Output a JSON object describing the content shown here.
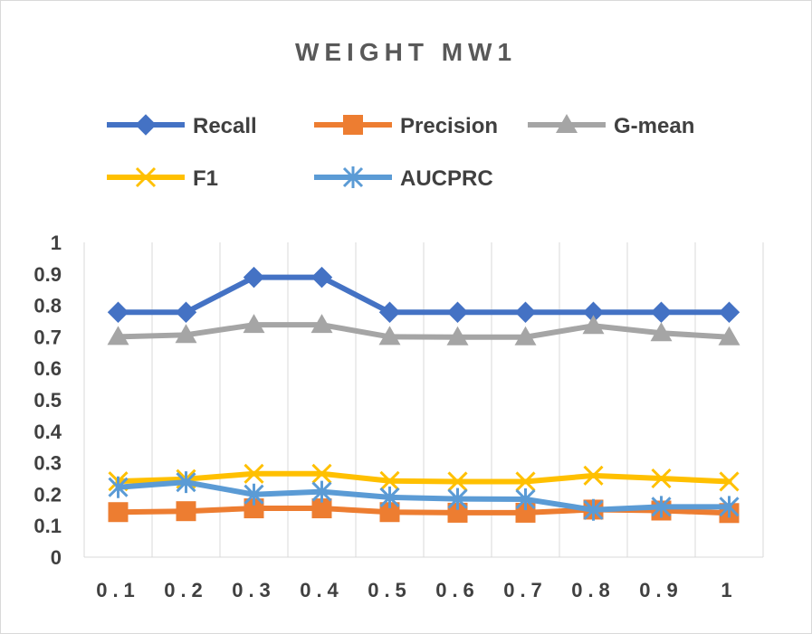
{
  "chart_data": {
    "type": "line",
    "title": "WEIGHT MW1",
    "xlabel": "",
    "ylabel": "",
    "categories": [
      "0.1",
      "0.2",
      "0.3",
      "0.4",
      "0.5",
      "0.6",
      "0.7",
      "0.8",
      "0.9",
      "1"
    ],
    "ylim": [
      0,
      1
    ],
    "yticks": [
      "0",
      "0.1",
      "0.2",
      "0.3",
      "0.4",
      "0.5",
      "0.6",
      "0.7",
      "0.8",
      "0.9",
      "1"
    ],
    "grid": "vertical",
    "legend_position": "top",
    "series": [
      {
        "name": "Recall",
        "color": "#4472C4",
        "marker": "diamond",
        "values": [
          0.778,
          0.778,
          0.889,
          0.889,
          0.778,
          0.778,
          0.778,
          0.778,
          0.778,
          0.778
        ]
      },
      {
        "name": "Precision",
        "color": "#ED7D31",
        "marker": "square",
        "values": [
          0.143,
          0.146,
          0.155,
          0.155,
          0.143,
          0.141,
          0.141,
          0.151,
          0.148,
          0.14
        ]
      },
      {
        "name": "G-mean",
        "color": "#A5A5A5",
        "marker": "triangle",
        "values": [
          0.7,
          0.706,
          0.738,
          0.738,
          0.7,
          0.699,
          0.699,
          0.735,
          0.712,
          0.699
        ]
      },
      {
        "name": "F1",
        "color": "#FFC000",
        "marker": "x",
        "values": [
          0.241,
          0.248,
          0.265,
          0.265,
          0.242,
          0.24,
          0.24,
          0.259,
          0.25,
          0.24
        ]
      },
      {
        "name": "AUCPRC",
        "color": "#5B9BD5",
        "marker": "star",
        "values": [
          0.222,
          0.238,
          0.199,
          0.208,
          0.19,
          0.185,
          0.184,
          0.15,
          0.16,
          0.16
        ]
      }
    ]
  }
}
